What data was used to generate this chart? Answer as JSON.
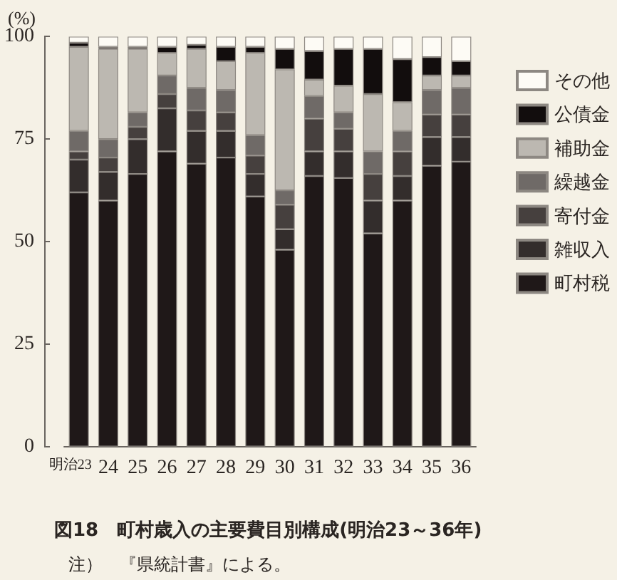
{
  "chart_data": {
    "type": "bar",
    "stacked": true,
    "title": "図18　町村歳入の主要費目別構成(明治23～36年)",
    "ylabel": "(%)",
    "annotations": [
      "注）　『県統計書』による。"
    ],
    "categories": [
      "明治23",
      "24",
      "25",
      "26",
      "27",
      "28",
      "29",
      "30",
      "31",
      "32",
      "33",
      "34",
      "35",
      "36"
    ],
    "series": [
      {
        "name": "町村税",
        "color": "#1f1818",
        "values": [
          62,
          60,
          66.5,
          72,
          69,
          70.5,
          61,
          48,
          66,
          65.5,
          52,
          60,
          68.5,
          69.5
        ]
      },
      {
        "name": "雑収入",
        "color": "#332d2c",
        "values": [
          8,
          7,
          8.5,
          10.5,
          8,
          6.5,
          5.5,
          5,
          6,
          6.5,
          8,
          6,
          7,
          6
        ]
      },
      {
        "name": "寄付金",
        "color": "#46403e",
        "values": [
          2,
          3.5,
          3,
          3.5,
          5,
          4.5,
          4.5,
          6,
          8,
          5.5,
          6.5,
          6,
          5.5,
          5.5
        ]
      },
      {
        "name": "繰越金",
        "color": "#6f6a67",
        "values": [
          5,
          4.5,
          3.5,
          4.5,
          5.5,
          5.5,
          5,
          3.5,
          5.5,
          4,
          5.5,
          5,
          6,
          6.5
        ]
      },
      {
        "name": "補助金",
        "color": "#bcb8b1",
        "values": [
          20.5,
          22,
          15.5,
          5.5,
          9.5,
          7,
          20,
          29.5,
          4,
          6.5,
          14,
          7,
          3.5,
          3
        ]
      },
      {
        "name": "公債金",
        "color": "#120d0d",
        "values": [
          1,
          0.5,
          0.5,
          1.5,
          1,
          3.5,
          1.5,
          5,
          7,
          9,
          11,
          10.5,
          4.5,
          3.5
        ]
      },
      {
        "name": "その他",
        "color": "#fdfbf5",
        "values": [
          1.5,
          2.5,
          2.5,
          2.5,
          2,
          2.5,
          2.5,
          3,
          3.5,
          3,
          3,
          5.5,
          5,
          6
        ]
      }
    ],
    "ylim": [
      0,
      100
    ],
    "yticks": [
      0,
      25,
      50,
      75,
      100
    ],
    "legend": "right"
  }
}
